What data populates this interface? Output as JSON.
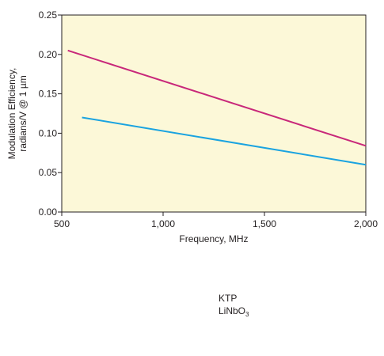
{
  "chart_data": {
    "type": "line",
    "title": "",
    "xlabel": "Frequency, MHz",
    "ylabel_line1": "Modulation Efficiency,",
    "ylabel_line2": "radians/V @ 1 µm",
    "xlim": [
      500,
      2000
    ],
    "ylim": [
      0,
      0.25
    ],
    "x_ticks": [
      500,
      1000,
      1500,
      2000
    ],
    "x_tick_labels": [
      "500",
      "1,000",
      "1,500",
      "2,000"
    ],
    "y_ticks": [
      0,
      0.05,
      0.1,
      0.15,
      0.2,
      0.25
    ],
    "y_tick_labels": [
      "0.00",
      "0.05",
      "0.10",
      "0.15",
      "0.20",
      "0.25"
    ],
    "plot_background": "#fcf8d8",
    "grid": false,
    "legend_placement": "below",
    "series": [
      {
        "name": "KTP",
        "name_base": "KTP",
        "name_sub": "",
        "name_tail": "",
        "color": "#c8287a",
        "x": [
          530,
          2000
        ],
        "y": [
          0.205,
          0.084
        ]
      },
      {
        "name": "LiNbO3",
        "name_base": "LiNbO",
        "name_sub": "3",
        "name_tail": "",
        "color": "#1aa3e0",
        "x": [
          600,
          2000
        ],
        "y": [
          0.12,
          0.06
        ]
      }
    ]
  }
}
